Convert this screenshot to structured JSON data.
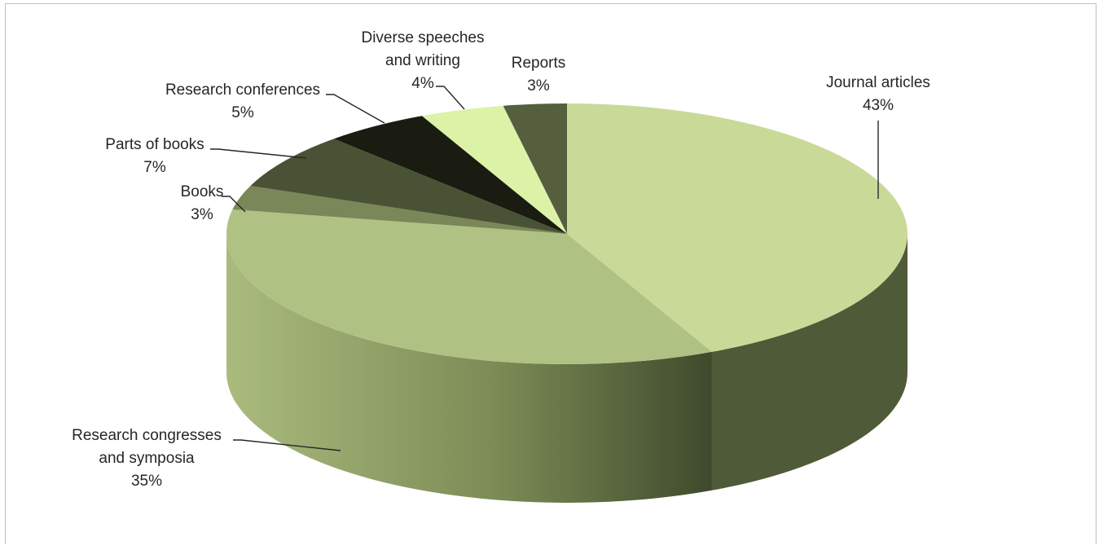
{
  "chart_data": {
    "type": "pie",
    "style": "3d-pie",
    "title": "",
    "categories": [
      "Journal articles",
      "Research congresses and symposia",
      "Books",
      "Parts of books",
      "Research conferences",
      "Diverse speeches and writing",
      "Reports"
    ],
    "values": [
      43,
      35,
      3,
      7,
      5,
      4,
      3
    ],
    "value_labels": [
      "43%",
      "35%",
      "3%",
      "7%",
      "5%",
      "4%",
      "3%"
    ],
    "label_lines": [
      [
        "Journal articles"
      ],
      [
        "Research congresses",
        "and symposia"
      ],
      [
        "Books"
      ],
      [
        "Parts of books"
      ],
      [
        "Research conferences"
      ],
      [
        "Diverse speeches",
        "and writing"
      ],
      [
        "Reports"
      ]
    ],
    "colors": [
      "#c9d998",
      "#b0c283",
      "#7a8758",
      "#495234",
      "#1a1c11",
      "#dcf2a6",
      "#555e3d"
    ],
    "side_colors": [
      "#4f5a38",
      "#9aab6e",
      "#626d45",
      "#353c24",
      "#101109",
      "#b5c98a",
      "#3f462d"
    ],
    "start_angle_deg": -90,
    "direction": "clockwise",
    "legend": "none",
    "data_labels": "outside-with-leader-lines"
  }
}
